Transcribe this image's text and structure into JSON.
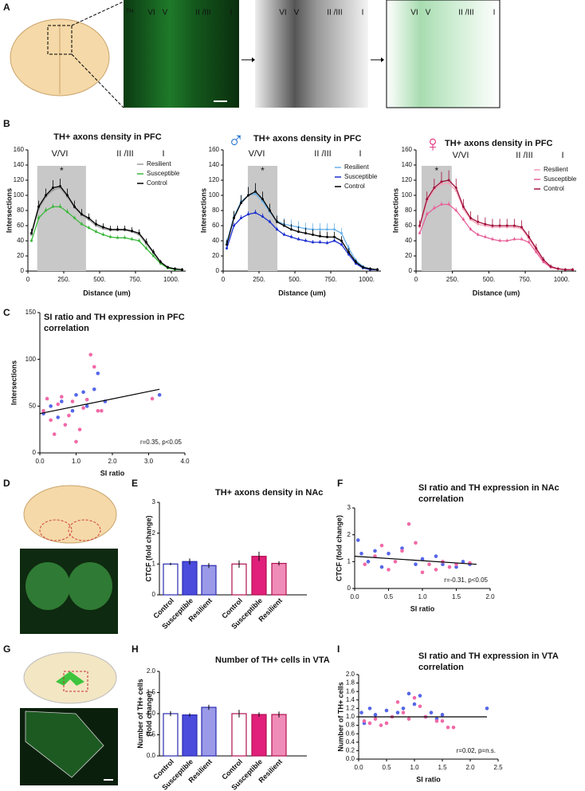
{
  "panel_labels": [
    "A",
    "B",
    "C",
    "D",
    "E",
    "F",
    "G",
    "H",
    "I"
  ],
  "panel_a": {
    "stain": "TH",
    "layers": [
      "VI",
      "V",
      "II /III",
      "I"
    ]
  },
  "chart_data": [
    {
      "type": "line",
      "title": "TH+ axons density in PFC",
      "xlabel": "Distance (um)",
      "ylabel": "Intersections",
      "xlim": [
        0,
        1100
      ],
      "xticks": [
        0,
        {
          "value": 250,
          "label": "250."
        },
        {
          "value": 500,
          "label": "500."
        },
        {
          "value": 750,
          "label": "750."
        },
        {
          "value": 1000,
          "label": "1000."
        }
      ],
      "ylim": [
        0,
        160
      ],
      "yticks": [
        0,
        20,
        40,
        60,
        80,
        100,
        120,
        140,
        160
      ],
      "shade": [
        65,
        405
      ],
      "regions": [
        "V/VI",
        "II /III",
        "I"
      ],
      "annotation": "*",
      "x": [
        25,
        75,
        125,
        175,
        225,
        275,
        325,
        375,
        425,
        475,
        525,
        575,
        625,
        675,
        725,
        775,
        825,
        875,
        925,
        975,
        1025,
        1075
      ],
      "series": [
        {
          "name": "Resilient",
          "color": "#9a9a9a",
          "values": [
            48,
            82,
            98,
            107,
            110,
            98,
            84,
            74,
            68,
            60,
            56,
            54,
            54,
            54,
            52,
            48,
            36,
            24,
            11,
            5,
            3,
            2
          ]
        },
        {
          "name": "Susceptible",
          "color": "#3cb83c",
          "values": [
            40,
            70,
            80,
            85,
            85,
            78,
            70,
            62,
            57,
            52,
            48,
            45,
            44,
            44,
            42,
            40,
            30,
            20,
            10,
            4,
            2,
            2
          ],
          "errors": [
            3,
            4,
            4,
            4,
            4,
            4,
            3,
            3,
            3,
            3,
            3,
            3,
            3,
            3,
            3,
            3,
            3,
            3,
            2,
            2,
            2,
            2
          ]
        },
        {
          "name": "Control",
          "color": "#000000",
          "values": [
            50,
            85,
            100,
            110,
            112,
            100,
            85,
            75,
            70,
            62,
            58,
            55,
            55,
            55,
            53,
            50,
            38,
            25,
            12,
            5,
            3,
            2
          ],
          "errors": [
            6,
            8,
            9,
            10,
            10,
            9,
            8,
            7,
            6,
            6,
            5,
            5,
            5,
            5,
            5,
            5,
            5,
            4,
            3,
            2,
            2,
            2
          ]
        }
      ]
    },
    {
      "type": "line",
      "title": "TH+ axons density in PFC",
      "symbol": "♂",
      "symbol_color": "#1f6fd0",
      "xlabel": "Distance (um)",
      "ylabel": "Intersections",
      "xlim": [
        0,
        1100
      ],
      "xticks": [
        0,
        {
          "value": 250,
          "label": "250."
        },
        {
          "value": 500,
          "label": "500."
        },
        {
          "value": 750,
          "label": "750."
        },
        {
          "value": 1000,
          "label": "1000."
        }
      ],
      "ylim": [
        0,
        160
      ],
      "yticks": [
        0,
        20,
        40,
        60,
        80,
        100,
        120,
        140,
        160
      ],
      "shade": [
        172,
        378
      ],
      "regions": [
        "V/VI",
        "II /III",
        "I"
      ],
      "annotation": "*",
      "x": [
        25,
        75,
        125,
        175,
        225,
        275,
        325,
        375,
        425,
        475,
        525,
        575,
        625,
        675,
        725,
        775,
        825,
        875,
        925,
        975,
        1025,
        1075
      ],
      "series": [
        {
          "name": "Resilient",
          "color": "#6ab0e8",
          "values": [
            38,
            72,
            92,
            100,
            102,
            92,
            78,
            66,
            62,
            60,
            58,
            56,
            55,
            55,
            55,
            55,
            50,
            30,
            14,
            6,
            3,
            2
          ],
          "errors": [
            5,
            8,
            9,
            10,
            10,
            9,
            8,
            8,
            8,
            8,
            8,
            8,
            8,
            8,
            8,
            8,
            7,
            5,
            3,
            2,
            2,
            2
          ]
        },
        {
          "name": "Susceptible",
          "color": "#1c2fd0",
          "values": [
            30,
            60,
            70,
            75,
            77,
            72,
            65,
            55,
            48,
            45,
            42,
            40,
            38,
            38,
            37,
            40,
            35,
            22,
            10,
            4,
            2,
            2
          ],
          "errors": [
            3,
            4,
            4,
            4,
            4,
            4,
            3,
            3,
            3,
            3,
            3,
            3,
            3,
            3,
            3,
            3,
            3,
            3,
            2,
            2,
            2,
            2
          ]
        },
        {
          "name": "Control",
          "color": "#000000",
          "values": [
            35,
            70,
            90,
            100,
            105,
            95,
            80,
            65,
            60,
            55,
            52,
            50,
            48,
            46,
            45,
            45,
            40,
            25,
            12,
            5,
            3,
            2
          ],
          "errors": [
            6,
            9,
            10,
            11,
            11,
            10,
            9,
            8,
            8,
            7,
            7,
            7,
            7,
            7,
            7,
            7,
            6,
            5,
            3,
            2,
            2,
            2
          ]
        }
      ]
    },
    {
      "type": "line",
      "title": "TH+ axons density in PFC",
      "symbol": "♀",
      "symbol_color": "#e0307a",
      "xlabel": "Distance (um)",
      "ylabel": "Intersections",
      "xlim": [
        0,
        1100
      ],
      "xticks": [
        0,
        {
          "value": 250,
          "label": "250."
        },
        {
          "value": 500,
          "label": "500."
        },
        {
          "value": 750,
          "label": "750."
        },
        {
          "value": 1000,
          "label": "1000."
        }
      ],
      "ylim": [
        0,
        160
      ],
      "yticks": [
        0,
        20,
        40,
        60,
        80,
        100,
        120,
        140,
        160
      ],
      "shade": [
        38,
        245
      ],
      "regions": [
        "V/VI",
        "II /III",
        "I"
      ],
      "annotation": "*",
      "x": [
        25,
        75,
        125,
        175,
        225,
        275,
        325,
        375,
        425,
        475,
        525,
        575,
        625,
        675,
        725,
        775,
        825,
        875,
        925,
        975,
        1025,
        1075
      ],
      "series": [
        {
          "name": "Resilient",
          "color": "#f4a0b8",
          "values": [
            58,
            92,
            108,
            115,
            116,
            106,
            82,
            68,
            62,
            60,
            58,
            58,
            58,
            58,
            56,
            43,
            28,
            14,
            6,
            3,
            2,
            2
          ]
        },
        {
          "name": "Susceptible",
          "color": "#e8609a",
          "values": [
            50,
            75,
            83,
            88,
            88,
            80,
            68,
            55,
            48,
            45,
            42,
            40,
            40,
            42,
            42,
            38,
            25,
            12,
            5,
            3,
            2,
            2
          ],
          "errors": [
            3,
            4,
            4,
            4,
            4,
            4,
            3,
            3,
            3,
            3,
            3,
            3,
            3,
            3,
            3,
            3,
            3,
            3,
            2,
            2,
            2,
            2
          ]
        },
        {
          "name": "Control",
          "color": "#a0103a",
          "values": [
            60,
            95,
            110,
            118,
            120,
            110,
            85,
            70,
            65,
            62,
            60,
            60,
            60,
            60,
            58,
            45,
            30,
            15,
            6,
            3,
            2,
            2
          ],
          "errors": [
            7,
            10,
            12,
            13,
            13,
            12,
            10,
            9,
            9,
            9,
            9,
            9,
            9,
            9,
            9,
            8,
            6,
            4,
            3,
            2,
            2,
            2
          ]
        }
      ]
    },
    {
      "type": "scatter",
      "title": [
        "SI ratio and TH expression in PFC",
        "correlation"
      ],
      "xlabel": "SI ratio",
      "ylabel": "Intersections",
      "xlim": [
        0,
        4
      ],
      "xticks": [
        {
          "value": 0,
          "label": "0.0"
        },
        {
          "value": 1,
          "label": "1.0"
        },
        {
          "value": 2,
          "label": "2.0"
        },
        {
          "value": 3,
          "label": "3.0"
        },
        {
          "value": 4,
          "label": "4.0"
        }
      ],
      "ylim": [
        0,
        150
      ],
      "yticks": [
        0,
        50,
        100,
        150
      ],
      "annotation": "r=0.35, p<0.05",
      "fit": {
        "x": [
          0,
          3.3
        ],
        "y": [
          42,
          68
        ]
      },
      "series": [
        {
          "color": "#5566e8",
          "x": [
            0.1,
            0.3,
            0.5,
            0.6,
            0.9,
            1.0,
            1.2,
            1.3,
            1.5,
            1.6,
            1.8,
            3.3
          ],
          "values": [
            42,
            50,
            38,
            55,
            45,
            62,
            65,
            50,
            68,
            85,
            55,
            62
          ]
        },
        {
          "color": "#f06aa8",
          "x": [
            0.1,
            0.2,
            0.3,
            0.4,
            0.5,
            0.6,
            0.7,
            0.8,
            0.9,
            1.0,
            1.1,
            1.2,
            1.4,
            1.5,
            1.6,
            1.7,
            3.1,
            1.3
          ],
          "values": [
            45,
            58,
            35,
            20,
            52,
            60,
            30,
            40,
            55,
            12,
            25,
            48,
            105,
            92,
            45,
            45,
            58,
            57
          ]
        }
      ]
    },
    {
      "type": "bar",
      "title": "TH+ axons density in NAc",
      "ylabel": "CTCF (fold change)",
      "ylim": [
        0,
        3
      ],
      "yticks": [
        0,
        1,
        2,
        3
      ],
      "categories": [
        "Control",
        "Susceptible",
        "Resilient",
        "Control",
        "Susceptible",
        "Resilient"
      ],
      "values": [
        1.0,
        1.08,
        0.95,
        1.0,
        1.25,
        1.02
      ],
      "errors": [
        0.04,
        0.1,
        0.08,
        0.12,
        0.15,
        0.07
      ],
      "colors": [
        "#ffffff",
        "#4b4bdc",
        "#9a9ae8",
        "#ffffff",
        "#e0207a",
        "#f08cb8"
      ],
      "edge_colors": [
        "#2a2ab0",
        "#2a2ab0",
        "#2a2ab0",
        "#b01050",
        "#b01050",
        "#b01050"
      ]
    },
    {
      "type": "scatter",
      "title": [
        "SI ratio and TH expression in NAc",
        "correlation"
      ],
      "xlabel": "SI ratio",
      "ylabel": "CTCF (fold change)",
      "xlim": [
        0,
        2
      ],
      "xticks": [
        {
          "value": 0,
          "label": "0.0"
        },
        0.5,
        {
          "value": 1,
          "label": "1.0"
        },
        1.5,
        {
          "value": 2,
          "label": "2.0"
        }
      ],
      "ylim": [
        0,
        3
      ],
      "yticks": [
        0,
        1,
        2,
        3
      ],
      "annotation": "r=-0.31, p<0.05",
      "fit": {
        "x": [
          0,
          1.8
        ],
        "y": [
          1.2,
          0.9
        ]
      },
      "series": [
        {
          "color": "#5566e8",
          "x": [
            0.05,
            0.1,
            0.2,
            0.3,
            0.4,
            0.5,
            0.7,
            0.9,
            1.0,
            1.2,
            1.3,
            1.5,
            1.6,
            1.7
          ],
          "values": [
            1.8,
            1.3,
            1.0,
            1.4,
            0.8,
            1.3,
            1.5,
            0.9,
            1.1,
            1.2,
            0.9,
            0.8,
            1.0,
            0.9
          ]
        },
        {
          "color": "#f06aa8",
          "x": [
            0.15,
            0.3,
            0.4,
            0.5,
            0.6,
            0.7,
            0.8,
            0.9,
            1.0,
            1.1,
            1.2,
            1.3,
            1.4,
            1.5,
            1.7
          ],
          "values": [
            0.9,
            1.2,
            1.6,
            0.7,
            1.0,
            1.4,
            2.4,
            1.7,
            0.6,
            0.9,
            0.7,
            1.0,
            0.8,
            0.9,
            0.95
          ]
        }
      ]
    },
    {
      "type": "bar",
      "title": "Number of TH+ cells in VTA",
      "ylabel": [
        "Number of TH+ cells",
        "(fold change)"
      ],
      "ylim": [
        0,
        2
      ],
      "yticks": [
        {
          "value": 0,
          "label": "0.0"
        },
        0.5,
        {
          "value": 1,
          "label": "1.0"
        },
        1.5,
        {
          "value": 2,
          "label": "2.0"
        }
      ],
      "categories": [
        "Control",
        "Susceptible",
        "Resilient",
        "Control",
        "Susceptible",
        "Resilient"
      ],
      "values": [
        1.0,
        0.97,
        1.15,
        1.0,
        0.98,
        0.98
      ],
      "errors": [
        0.06,
        0.04,
        0.06,
        0.09,
        0.05,
        0.07
      ],
      "colors": [
        "#ffffff",
        "#4b4bdc",
        "#9a9ae8",
        "#ffffff",
        "#e0207a",
        "#f08cb8"
      ],
      "edge_colors": [
        "#2a2ab0",
        "#2a2ab0",
        "#2a2ab0",
        "#b01050",
        "#b01050",
        "#b01050"
      ]
    },
    {
      "type": "scatter",
      "title": [
        "SI ratio and TH expression in VTA",
        "correlation"
      ],
      "xlabel": "SI ratio",
      "ylabel": "Number of TH+ cells",
      "xlim": [
        0,
        2.5
      ],
      "xticks": [
        {
          "value": 0,
          "label": "0.0"
        },
        0.5,
        {
          "value": 1,
          "label": "1.0"
        },
        1.5,
        {
          "value": 2,
          "label": "2.0"
        },
        2.5
      ],
      "ylim": [
        0,
        2
      ],
      "yticks": [
        {
          "value": 0,
          "label": "0.0"
        },
        0.2,
        0.4,
        0.6,
        0.8,
        {
          "value": 1,
          "label": "1.0"
        },
        1.2,
        1.4,
        1.6,
        1.8,
        {
          "value": 2,
          "label": "2.0"
        }
      ],
      "annotation": "r=0.02, p=n.s.",
      "fit": {
        "x": [
          0,
          2.3
        ],
        "y": [
          1.0,
          1.0
        ]
      },
      "series": [
        {
          "color": "#5566e8",
          "x": [
            0.05,
            0.1,
            0.2,
            0.3,
            0.5,
            0.7,
            0.8,
            0.9,
            1.0,
            1.1,
            1.2,
            1.3,
            1.4,
            1.5,
            2.3
          ],
          "values": [
            1.1,
            0.85,
            1.2,
            1.05,
            1.15,
            1.1,
            1.2,
            1.55,
            1.3,
            1.5,
            1.0,
            1.1,
            0.95,
            1.05,
            1.2
          ]
        },
        {
          "color": "#f06aa8",
          "x": [
            0.1,
            0.2,
            0.3,
            0.4,
            0.5,
            0.6,
            0.7,
            0.8,
            0.9,
            1.0,
            1.1,
            1.2,
            1.4,
            1.5,
            1.6,
            1.7
          ],
          "values": [
            0.9,
            0.85,
            0.95,
            0.8,
            0.85,
            1.0,
            1.35,
            1.1,
            0.95,
            1.45,
            1.25,
            1.0,
            0.9,
            0.9,
            0.75,
            0.75
          ]
        }
      ]
    }
  ]
}
